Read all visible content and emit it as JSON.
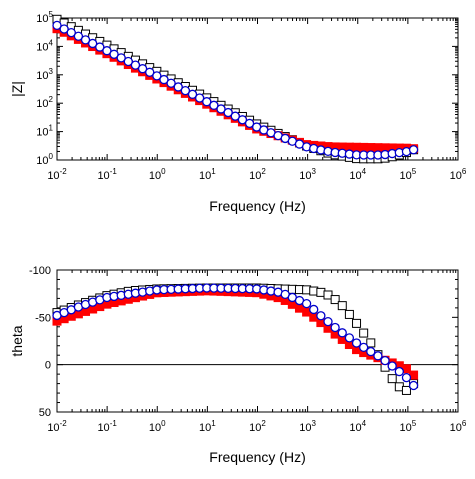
{
  "chart_data": [
    {
      "type": "scatter",
      "title": "",
      "xlabel": "Frequency (Hz)",
      "ylabel": "|Z|",
      "x_scale": "log",
      "y_scale": "log",
      "xlim": [
        0.01,
        1000000
      ],
      "ylim": [
        1,
        100000
      ],
      "grid": false,
      "x_ticks": [
        {
          "base": "10",
          "exp": "-2"
        },
        {
          "base": "10",
          "exp": "-1"
        },
        {
          "base": "10",
          "exp": "0"
        },
        {
          "base": "10",
          "exp": "1"
        },
        {
          "base": "10",
          "exp": "2"
        },
        {
          "base": "10",
          "exp": "3"
        },
        {
          "base": "10",
          "exp": "4"
        },
        {
          "base": "10",
          "exp": "5"
        },
        {
          "base": "10",
          "exp": "6"
        }
      ],
      "y_ticks": [
        {
          "base": "10",
          "exp": "0"
        },
        {
          "base": "10",
          "exp": "1"
        },
        {
          "base": "10",
          "exp": "2"
        },
        {
          "base": "10",
          "exp": "3"
        },
        {
          "base": "10",
          "exp": "4"
        },
        {
          "base": "10",
          "exp": "5"
        }
      ],
      "series": [
        {
          "marker": "square-open",
          "color": "#000000",
          "x": [
            0.01,
            0.1,
            1,
            10,
            100,
            1000,
            3000,
            10000,
            30000,
            60000,
            100000,
            130000
          ],
          "y": [
            90000,
            11000,
            1300,
            150,
            18,
            3,
            1.6,
            1.1,
            1.1,
            1.4,
            1.9,
            2.3
          ]
        },
        {
          "marker": "square-filled",
          "color": "#ff0000",
          "x": [
            0.01,
            0.1,
            1,
            10,
            100,
            1000,
            3000,
            10000,
            30000,
            100000,
            130000
          ],
          "y": [
            42000,
            5500,
            700,
            90,
            12,
            3.4,
            2.9,
            2.8,
            2.7,
            2.6,
            2.5
          ]
        },
        {
          "marker": "circle-open",
          "color": "#0000cc",
          "x": [
            0.01,
            0.1,
            1,
            10,
            100,
            1000,
            3000,
            10000,
            30000,
            100000,
            130000
          ],
          "y": [
            55000,
            7000,
            900,
            110,
            14,
            2.8,
            1.9,
            1.5,
            1.5,
            2.0,
            2.3
          ]
        }
      ]
    },
    {
      "type": "scatter",
      "title": "",
      "xlabel": "Frequency (Hz)",
      "ylabel": "theta",
      "x_scale": "log",
      "xlim": [
        0.01,
        1000000
      ],
      "ylim": [
        50,
        -100
      ],
      "y_inverted": true,
      "grid": false,
      "reference_line": 0,
      "x_ticks": [
        {
          "base": "10",
          "exp": "-2"
        },
        {
          "base": "10",
          "exp": "-1"
        },
        {
          "base": "10",
          "exp": "0"
        },
        {
          "base": "10",
          "exp": "1"
        },
        {
          "base": "10",
          "exp": "2"
        },
        {
          "base": "10",
          "exp": "3"
        },
        {
          "base": "10",
          "exp": "4"
        },
        {
          "base": "10",
          "exp": "5"
        },
        {
          "base": "10",
          "exp": "6"
        }
      ],
      "y_ticks": [
        "-100",
        "-50",
        "0",
        "50"
      ],
      "y_tick_values": [
        -100,
        -50,
        0,
        50
      ],
      "series": [
        {
          "marker": "square-open",
          "color": "#000000",
          "x": [
            0.01,
            0.03,
            0.1,
            0.3,
            1,
            10,
            100,
            300,
            1000,
            2000,
            3000,
            5000,
            10000,
            20000,
            40000,
            60000,
            100000,
            130000
          ],
          "y": [
            -55,
            -64,
            -73,
            -78,
            -80,
            -81,
            -81,
            -80,
            -79,
            -76,
            -72,
            -62,
            -42,
            -20,
            8,
            22,
            28,
            20
          ]
        },
        {
          "marker": "square-filled",
          "color": "#ff0000",
          "x": [
            0.01,
            0.1,
            1,
            10,
            100,
            300,
            1000,
            2000,
            4000,
            10000,
            30000,
            60000,
            100000,
            130000
          ],
          "y": [
            -46,
            -64,
            -76,
            -78,
            -76,
            -70,
            -55,
            -43,
            -30,
            -15,
            -6,
            0,
            5,
            11
          ]
        },
        {
          "marker": "circle-open",
          "color": "#0000cc",
          "x": [
            0.01,
            0.03,
            0.1,
            1,
            10,
            100,
            300,
            1000,
            2000,
            4000,
            10000,
            30000,
            60000,
            100000,
            130000
          ],
          "y": [
            -52,
            -62,
            -71,
            -79,
            -81,
            -80,
            -76,
            -64,
            -50,
            -37,
            -22,
            -7,
            5,
            15,
            22
          ]
        }
      ]
    }
  ]
}
